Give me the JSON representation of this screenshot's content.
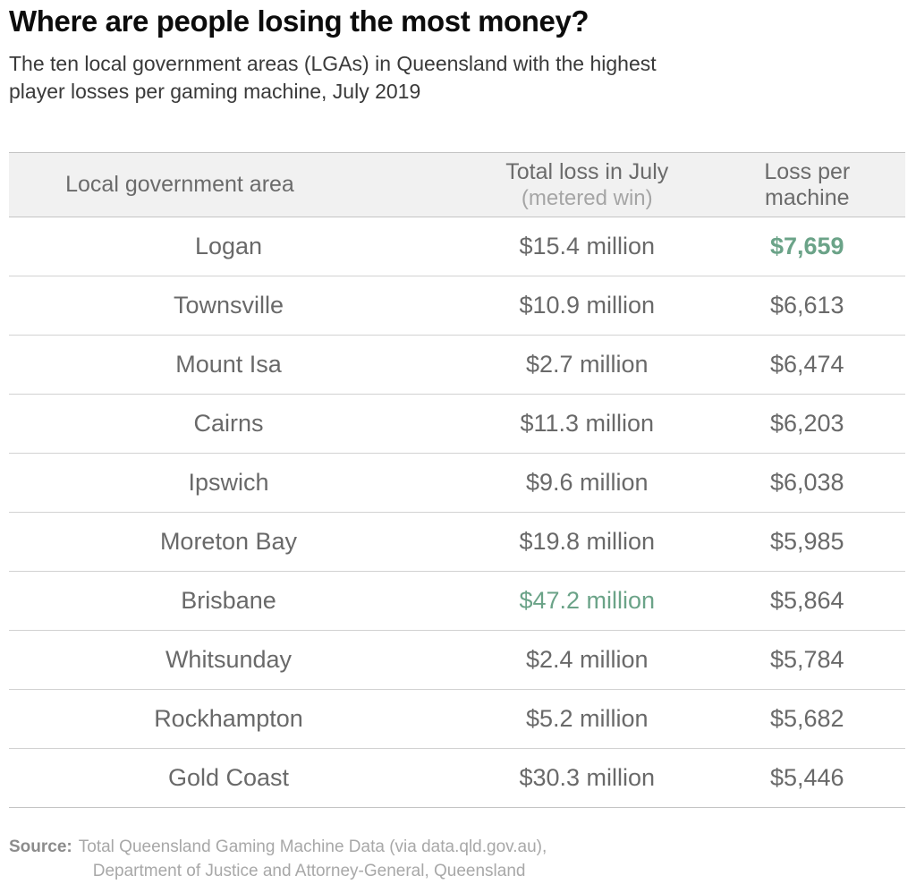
{
  "colors": {
    "highlight_green": "#6ba388",
    "header_bg": "#f1f1f1",
    "strong_border": "#c4c4c4",
    "row_border": "#d2d2d2"
  },
  "header": {
    "title": "Where are people losing the most money?",
    "subtitle_line1": "The ten local government areas (LGAs) in Queensland with the highest",
    "subtitle_line2": "player losses per gaming machine, July 2019"
  },
  "table": {
    "columns": {
      "lga": "Local government area",
      "total_loss": "Total loss in July",
      "total_loss_note": "(metered win)",
      "per_machine": "Loss per machine"
    },
    "rows": [
      {
        "lga": "Logan",
        "total_loss": "$15.4 million",
        "loss_per_machine": "$7,659",
        "total_loss_highlight": false,
        "per_machine_highlight": true
      },
      {
        "lga": "Townsville",
        "total_loss": "$10.9 million",
        "loss_per_machine": "$6,613",
        "total_loss_highlight": false,
        "per_machine_highlight": false
      },
      {
        "lga": "Mount Isa",
        "total_loss": "$2.7 million",
        "loss_per_machine": "$6,474",
        "total_loss_highlight": false,
        "per_machine_highlight": false
      },
      {
        "lga": "Cairns",
        "total_loss": "$11.3 million",
        "loss_per_machine": "$6,203",
        "total_loss_highlight": false,
        "per_machine_highlight": false
      },
      {
        "lga": "Ipswich",
        "total_loss": "$9.6 million",
        "loss_per_machine": "$6,038",
        "total_loss_highlight": false,
        "per_machine_highlight": false
      },
      {
        "lga": "Moreton Bay",
        "total_loss": "$19.8 million",
        "loss_per_machine": "$5,985",
        "total_loss_highlight": false,
        "per_machine_highlight": false
      },
      {
        "lga": "Brisbane",
        "total_loss": "$47.2 million",
        "loss_per_machine": "$5,864",
        "total_loss_highlight": true,
        "per_machine_highlight": false
      },
      {
        "lga": "Whitsunday",
        "total_loss": "$2.4 million",
        "loss_per_machine": "$5,784",
        "total_loss_highlight": false,
        "per_machine_highlight": false
      },
      {
        "lga": "Rockhampton",
        "total_loss": "$5.2 million",
        "loss_per_machine": "$5,682",
        "total_loss_highlight": false,
        "per_machine_highlight": false
      },
      {
        "lga": "Gold Coast",
        "total_loss": "$30.3 million",
        "loss_per_machine": "$5,446",
        "total_loss_highlight": false,
        "per_machine_highlight": false
      }
    ]
  },
  "source": {
    "label": "Source:",
    "line1": "Total Queensland Gaming Machine Data (via data.qld.gov.au),",
    "line2": "Department of Justice and Attorney-General, Queensland"
  },
  "chart_data": {
    "type": "table",
    "title": "Where are people losing the most money?",
    "subtitle": "The ten local government areas (LGAs) in Queensland with the highest player losses per gaming machine, July 2019",
    "columns": [
      "Local government area",
      "Total loss in July (metered win)",
      "Loss per machine"
    ],
    "categories": [
      "Logan",
      "Townsville",
      "Mount Isa",
      "Cairns",
      "Ipswich",
      "Moreton Bay",
      "Brisbane",
      "Whitsunday",
      "Rockhampton",
      "Gold Coast"
    ],
    "series": [
      {
        "name": "Total loss in July (metered win), $ million",
        "values": [
          15.4,
          10.9,
          2.7,
          11.3,
          9.6,
          19.8,
          47.2,
          2.4,
          5.2,
          30.3
        ]
      },
      {
        "name": "Loss per machine, $",
        "values": [
          7659,
          6613,
          6474,
          6203,
          6038,
          5985,
          5864,
          5784,
          5682,
          5446
        ]
      }
    ],
    "annotations": {
      "highlighted_cells": [
        {
          "row": "Logan",
          "column": "Loss per machine",
          "value": "$7,659",
          "style": "green bold"
        },
        {
          "row": "Brisbane",
          "column": "Total loss in July (metered win)",
          "value": "$47.2 million",
          "style": "green"
        }
      ]
    },
    "source": "Total Queensland Gaming Machine Data (via data.qld.gov.au), Department of Justice and Attorney-General, Queensland"
  }
}
